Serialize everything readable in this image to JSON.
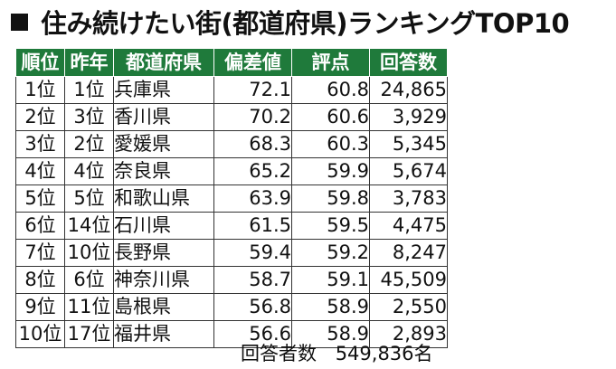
{
  "title": {
    "bullet_icon": "black-square-icon",
    "text": "住み続けたい街(都道府県)ランキングTOP10"
  },
  "table": {
    "header_color": "#1f7a3b",
    "headers": [
      "順位",
      "昨年",
      "都道府県",
      "偏差値",
      "評点",
      "回答数"
    ],
    "rows": [
      {
        "rank": "1位",
        "prev": "1位",
        "pref": "兵庫県",
        "deviation": "72.1",
        "score": "60.8",
        "responses": "24,865"
      },
      {
        "rank": "2位",
        "prev": "3位",
        "pref": "香川県",
        "deviation": "70.2",
        "score": "60.6",
        "responses": "3,929"
      },
      {
        "rank": "3位",
        "prev": "2位",
        "pref": "愛媛県",
        "deviation": "68.3",
        "score": "60.3",
        "responses": "5,345"
      },
      {
        "rank": "4位",
        "prev": "4位",
        "pref": "奈良県",
        "deviation": "65.2",
        "score": "59.9",
        "responses": "5,674"
      },
      {
        "rank": "5位",
        "prev": "5位",
        "pref": "和歌山県",
        "deviation": "63.9",
        "score": "59.8",
        "responses": "3,783"
      },
      {
        "rank": "6位",
        "prev": "14位",
        "pref": "石川県",
        "deviation": "61.5",
        "score": "59.5",
        "responses": "4,475"
      },
      {
        "rank": "7位",
        "prev": "10位",
        "pref": "長野県",
        "deviation": "59.4",
        "score": "59.2",
        "responses": "8,247"
      },
      {
        "rank": "8位",
        "prev": "6位",
        "pref": "神奈川県",
        "deviation": "58.7",
        "score": "59.1",
        "responses": "45,509"
      },
      {
        "rank": "9位",
        "prev": "11位",
        "pref": "島根県",
        "deviation": "56.8",
        "score": "58.9",
        "responses": "2,550"
      },
      {
        "rank": "10位",
        "prev": "17位",
        "pref": "福井県",
        "deviation": "56.6",
        "score": "58.9",
        "responses": "2,893"
      }
    ]
  },
  "footer": {
    "label": "回答者数",
    "value": "549,836名"
  }
}
